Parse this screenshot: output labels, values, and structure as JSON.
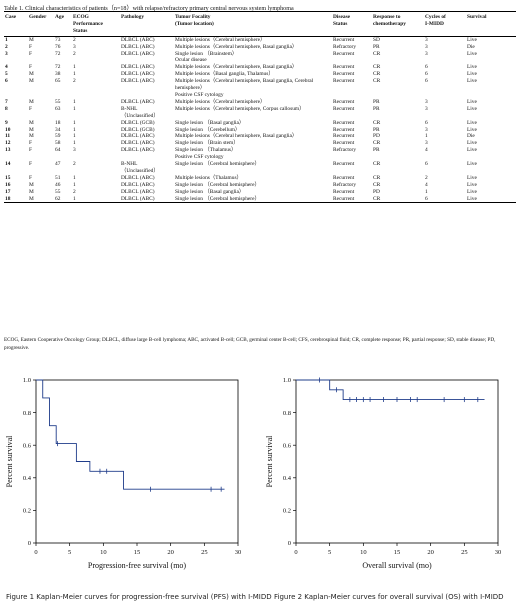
{
  "table": {
    "caption": "Table 1. Clinical characteristics of patients（n=18）with relapse/refractory primary central nervous system lymphoma",
    "headers": [
      "Case",
      "Gender",
      "Age",
      "ECOG Performance Status",
      "Pathology",
      "Tumor Focality (Tumor location)",
      "Disease Status",
      "Response to chemotherapy",
      "Cycles of I-MIDD",
      "Survival"
    ],
    "rows": [
      [
        "1",
        "M",
        "73",
        "2",
        "DLBCL (ABC)",
        "Multiple lesions（Cerebral hemisphere）",
        "Recurrent",
        "SD",
        "3",
        "Live"
      ],
      [
        "2",
        "F",
        "76",
        "3",
        "DLBCL (ABC)",
        "Multiple lesions（Cerebral hemisphere, Basal ganglia）",
        "Refractory",
        "PR",
        "3",
        "Die"
      ],
      [
        "3",
        "F",
        "72",
        "2",
        "DLBCL (ABC)",
        "Single lesion （Brainstem）\nOcular disease",
        "Recurrent",
        "CR",
        "3",
        "Live"
      ],
      [
        "4",
        "F",
        "72",
        "1",
        "DLBCL (ABC)",
        "Multiple lesions（Cerebral hemisphere, Basal ganglia）",
        "Recurrent",
        "CR",
        "6",
        "Live"
      ],
      [
        "5",
        "M",
        "38",
        "1",
        "DLBCL (ABC)",
        "Multiple lesions（Basal ganglia, Thalamus）",
        "Recurrent",
        "CR",
        "6",
        "Live"
      ],
      [
        "6",
        "M",
        "65",
        "2",
        "DLBCL (ABC)",
        "Multiple lesions（Cerebral hemisphere, Basal ganglia, Cerebral\nhemisphere）\nPositive CSF cytology",
        "Recurrent",
        "CR",
        "6",
        "Live"
      ],
      [
        "7",
        "M",
        "55",
        "1",
        "DLBCL (ABC)",
        "Multiple lesions（Cerebral hemisphere）",
        "Recurrent",
        "PR",
        "3",
        "Live"
      ],
      [
        "8",
        "F",
        "63",
        "1",
        "B-NHL\n（Unclassified）",
        "Multiple lesions（Cerebral hemisphere, Corpus callosum）",
        "Recurrent",
        "PR",
        "3",
        "Live"
      ],
      [
        "9",
        "M",
        "18",
        "1",
        "DLBCL (GCB)",
        "Single lesion （Basal ganglia）",
        "Recurrent",
        "CR",
        "6",
        "Live"
      ],
      [
        "10",
        "M",
        "34",
        "1",
        "DLBCL (GCB)",
        "Single lesion （Cerebellum）",
        "Recurrent",
        "PR",
        "3",
        "Live"
      ],
      [
        "11",
        "M",
        "59",
        "1",
        "DLBCL (ABC)",
        "Multiple lesions（Cerebral hemisphere, Basal ganglia）",
        "Recurrent",
        "PD",
        "1",
        "Die"
      ],
      [
        "12",
        "F",
        "58",
        "1",
        "DLBCL (ABC)",
        "Single lesion （Brain stem）",
        "Recurrent",
        "CR",
        "3",
        "Live"
      ],
      [
        "13",
        "F",
        "64",
        "3",
        "DLBCL (ABC)",
        "Single lesion （Thalamus）\nPositive CSF cytology",
        "Refractory",
        "PR",
        "4",
        "Live"
      ],
      [
        "14",
        "F",
        "47",
        "2",
        "B-NHL\n（Unclassified）",
        "Single lesion （Cerebral hemisphere）",
        "Recurrent",
        "CR",
        "6",
        "Live"
      ],
      [
        "15",
        "F",
        "51",
        "1",
        "DLBCL (ABC)",
        "Multiple lesions（Thalamus）",
        "Recurrent",
        "CR",
        "2",
        "Live"
      ],
      [
        "16",
        "M",
        "46",
        "1",
        "DLBCL (ABC)",
        "Single lesion （Cerebral hemisphere）",
        "Refractory",
        "CR",
        "4",
        "Live"
      ],
      [
        "17",
        "M",
        "55",
        "2",
        "DLBCL (ABC)",
        "Single lesion （Basal ganglia）",
        "Recurrent",
        "PD",
        "1",
        "Live"
      ],
      [
        "18",
        "M",
        "62",
        "1",
        "DLBCL (ABC)",
        "Single lesion （Cerebral hemisphere）",
        "Recurrent",
        "CR",
        "6",
        "Live"
      ]
    ],
    "footnote": "ECOG, Eastern Cooperative Oncology Group; DLBCL, diffuse large B-cell lymphoma; ABC, activated B-cell; GCB, germinal center B-cell; CFS, cerebrospinal fluid; CR, complete response; PR, partial response; SD, stable disease; PD, progressive."
  },
  "figures": {
    "fig1_caption": "Figure 1 Kaplan-Meier curves for progression-free survival (PFS) with I-MIDD",
    "fig2_caption": "Figure 2 Kaplan-Meier curves for overall survival (OS) with I-MIDD"
  },
  "chart_data": [
    {
      "type": "line",
      "step": true,
      "title": "",
      "xlabel": "Progression-free survival (mo)",
      "ylabel": "Percent survival",
      "xlim": [
        0,
        30
      ],
      "ylim": [
        0,
        1.0
      ],
      "x_ticks": [
        "0",
        "5",
        "10",
        "15",
        "20",
        "25",
        "30"
      ],
      "y_ticks": [
        "0",
        "0.2",
        "0.4",
        "0.6",
        "0.8",
        "1.0"
      ],
      "series": [
        {
          "x": [
            0,
            1,
            2,
            3,
            4,
            6,
            8,
            10,
            13,
            28
          ],
          "y": [
            1.0,
            0.89,
            0.72,
            0.61,
            0.61,
            0.5,
            0.44,
            0.44,
            0.33,
            0.33
          ]
        }
      ],
      "censored_x": [
        3.2,
        9.5,
        10.5,
        17,
        26,
        27.5
      ],
      "censored_y": [
        0.61,
        0.44,
        0.44,
        0.33,
        0.33,
        0.33
      ],
      "grid": false,
      "color": "#1f3c8a"
    },
    {
      "type": "line",
      "step": true,
      "title": "",
      "xlabel": "Overall survival (mo)",
      "ylabel": "Percent survival",
      "xlim": [
        0,
        30
      ],
      "ylim": [
        0,
        1.0
      ],
      "x_ticks": [
        "0",
        "5",
        "10",
        "15",
        "20",
        "25",
        "30"
      ],
      "y_ticks": [
        "0",
        "0.2",
        "0.4",
        "0.6",
        "0.8",
        "1.0"
      ],
      "series": [
        {
          "x": [
            0,
            5,
            7,
            28
          ],
          "y": [
            1.0,
            0.94,
            0.88,
            0.88
          ]
        }
      ],
      "censored_x": [
        3.5,
        6,
        8,
        9,
        10,
        11,
        13,
        15,
        17,
        18,
        22,
        25,
        27
      ],
      "censored_y": [
        1.0,
        0.94,
        0.88,
        0.88,
        0.88,
        0.88,
        0.88,
        0.88,
        0.88,
        0.88,
        0.88,
        0.88,
        0.88
      ],
      "grid": false,
      "color": "#1f3c8a"
    }
  ]
}
